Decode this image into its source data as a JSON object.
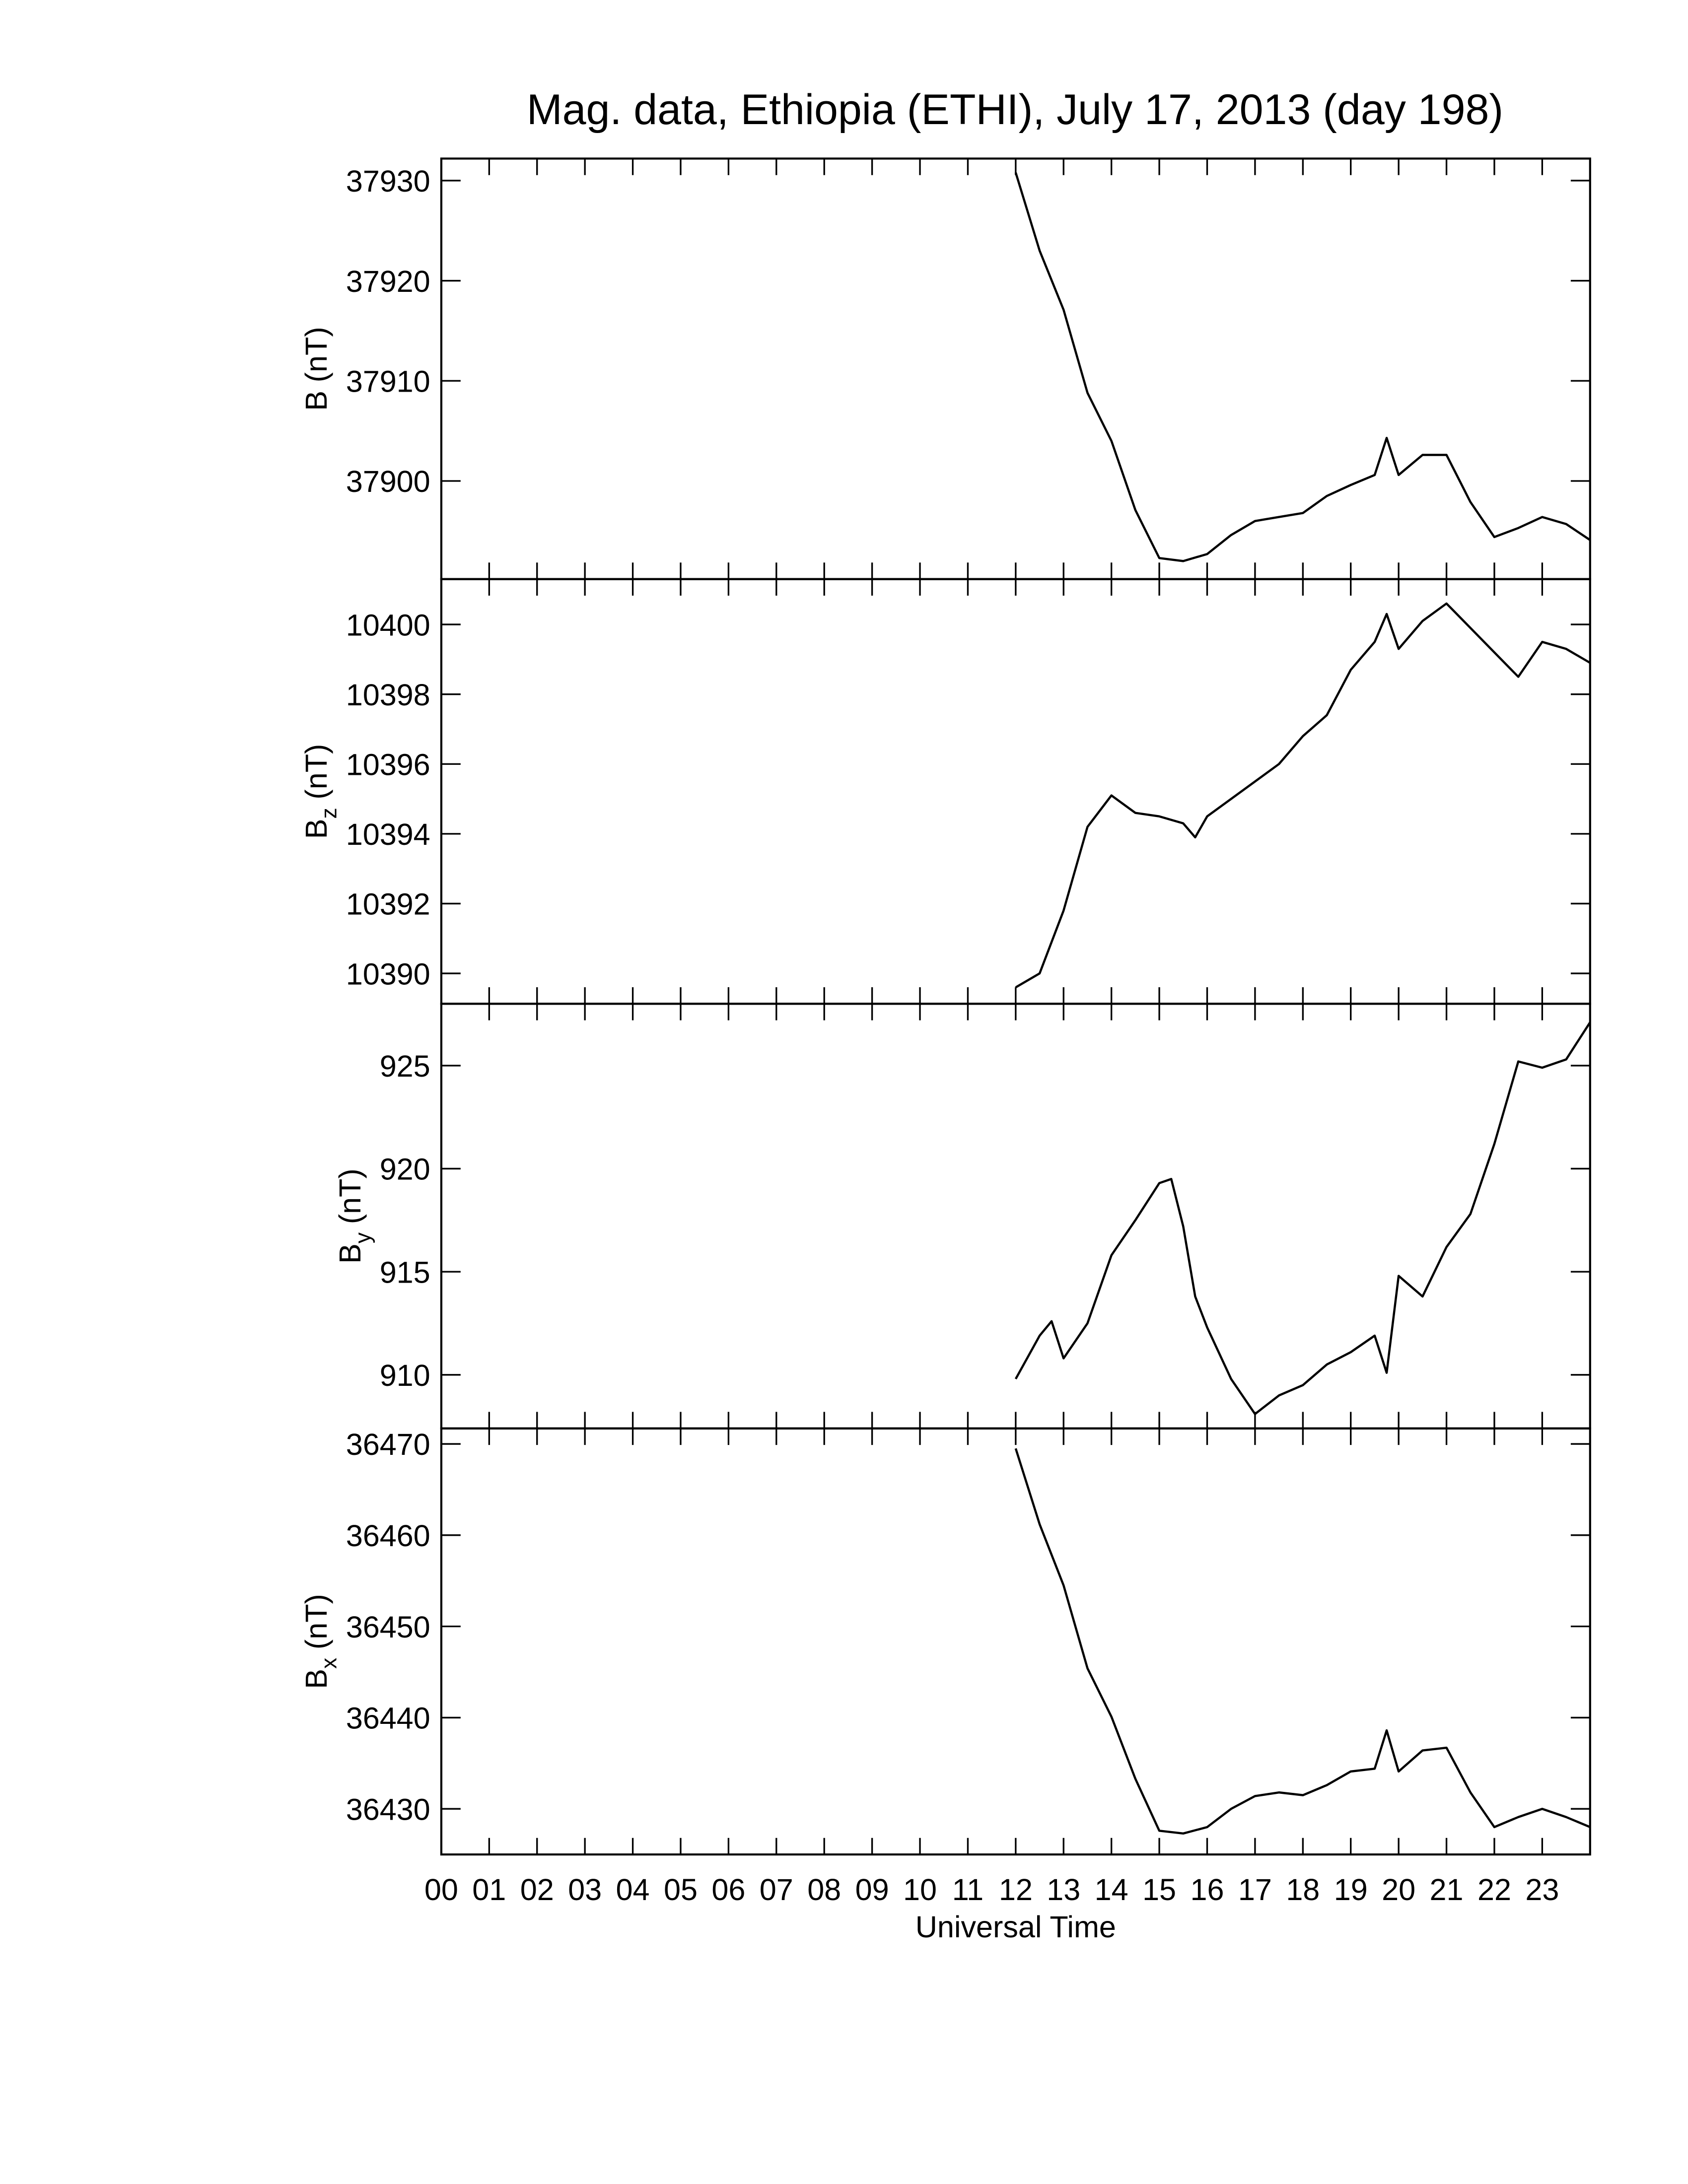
{
  "chart_data": [
    {
      "type": "line",
      "title": "Mag. data, Ethiopia (ETHI), July 17, 2013 (day 198)",
      "ylabel": "B",
      "ylabel_unit": "(nT)",
      "color": "#000000",
      "xlim": [
        0,
        24
      ],
      "ylim": [
        37890.2,
        37932.2
      ],
      "yticks": [
        37900,
        37910,
        37920,
        37930
      ],
      "x": [
        12,
        12.5,
        13,
        13.5,
        14,
        14.5,
        15,
        15.5,
        16,
        16.5,
        17,
        17.5,
        18,
        18.5,
        19,
        19.5,
        19.75,
        20,
        20.5,
        21,
        21.5,
        22,
        22.5,
        23,
        23.5,
        24
      ],
      "values": [
        37930.8,
        37923.0,
        37917.1,
        37908.8,
        37904.0,
        37897.1,
        37892.3,
        37892.0,
        37892.7,
        37894.6,
        37896.0,
        37896.4,
        37896.8,
        37898.5,
        37899.6,
        37900.6,
        37904.3,
        37900.6,
        37902.6,
        37902.6,
        37897.9,
        37894.4,
        37895.3,
        37896.4,
        37895.7,
        37894.1
      ]
    },
    {
      "type": "line",
      "ylabel": "B",
      "ylabel_sub": "z",
      "ylabel_unit": "(nT)",
      "color": "#000000",
      "xlim": [
        0,
        24
      ],
      "ylim": [
        10389.13,
        10401.3
      ],
      "yticks": [
        10390,
        10392,
        10394,
        10396,
        10398,
        10400
      ],
      "x": [
        12,
        12.5,
        13,
        13.5,
        14,
        14.5,
        15,
        15.5,
        15.75,
        16,
        16.5,
        17,
        17.5,
        18,
        18.5,
        19,
        19.5,
        19.75,
        20,
        20.5,
        21,
        21.5,
        22,
        22.5,
        23,
        23.5,
        24
      ],
      "values": [
        10389.6,
        10390.0,
        10391.8,
        10394.2,
        10395.1,
        10394.6,
        10394.5,
        10394.3,
        10393.9,
        10394.5,
        10395.0,
        10395.5,
        10396.0,
        10396.8,
        10397.4,
        10398.7,
        10399.5,
        10400.3,
        10399.3,
        10400.1,
        10400.6,
        10399.9,
        10399.2,
        10398.5,
        10399.5,
        10399.3,
        10398.9
      ]
    },
    {
      "type": "line",
      "ylabel": "B",
      "ylabel_sub": "y",
      "ylabel_unit": "(nT)",
      "color": "#000000",
      "xlim": [
        0,
        24
      ],
      "ylim": [
        907.4,
        928.0
      ],
      "yticks": [
        910,
        915,
        920,
        925
      ],
      "x": [
        12,
        12.5,
        12.75,
        13,
        13.5,
        14,
        14.5,
        15,
        15.25,
        15.5,
        15.75,
        16,
        16.5,
        17,
        17.5,
        18,
        18.5,
        19,
        19.5,
        19.75,
        20,
        20.5,
        21,
        21.5,
        22,
        22.5,
        23,
        23.5,
        24
      ],
      "values": [
        909.8,
        911.9,
        912.6,
        910.8,
        912.5,
        915.8,
        917.5,
        919.3,
        919.5,
        917.2,
        913.8,
        912.3,
        909.8,
        908.1,
        909.0,
        909.5,
        910.5,
        911.1,
        911.9,
        910.1,
        914.8,
        913.8,
        916.2,
        917.8,
        921.2,
        925.2,
        924.9,
        925.3,
        927.1
      ]
    },
    {
      "type": "line",
      "ylabel": "B",
      "ylabel_sub": "x",
      "ylabel_unit": "(nT)",
      "xlabel": "Universal Time",
      "color": "#000000",
      "xlim": [
        0,
        24
      ],
      "ylim": [
        36425.0,
        36471.7
      ],
      "yticks": [
        36430,
        36440,
        36450,
        36460,
        36470
      ],
      "xticks": [
        {
          "value": 0,
          "label": "00"
        },
        {
          "value": 1,
          "label": "01"
        },
        {
          "value": 2,
          "label": "02"
        },
        {
          "value": 3,
          "label": "03"
        },
        {
          "value": 4,
          "label": "04"
        },
        {
          "value": 5,
          "label": "05"
        },
        {
          "value": 6,
          "label": "06"
        },
        {
          "value": 7,
          "label": "07"
        },
        {
          "value": 8,
          "label": "08"
        },
        {
          "value": 9,
          "label": "09"
        },
        {
          "value": 10,
          "label": "10"
        },
        {
          "value": 11,
          "label": "11"
        },
        {
          "value": 12,
          "label": "12"
        },
        {
          "value": 13,
          "label": "13"
        },
        {
          "value": 14,
          "label": "14"
        },
        {
          "value": 15,
          "label": "15"
        },
        {
          "value": 16,
          "label": "16"
        },
        {
          "value": 17,
          "label": "17"
        },
        {
          "value": 18,
          "label": "18"
        },
        {
          "value": 19,
          "label": "19"
        },
        {
          "value": 20,
          "label": "20"
        },
        {
          "value": 21,
          "label": "21"
        },
        {
          "value": 22,
          "label": "22"
        },
        {
          "value": 23,
          "label": "23"
        }
      ],
      "x": [
        12,
        12.5,
        13,
        13.5,
        14,
        14.5,
        15,
        15.5,
        16,
        16.5,
        17,
        17.5,
        18,
        18.5,
        19,
        19.5,
        19.75,
        20,
        20.5,
        21,
        21.5,
        22,
        22.5,
        23,
        23.5,
        24
      ],
      "values": [
        36469.5,
        36461.2,
        36454.5,
        36445.4,
        36440.1,
        36433.3,
        36427.6,
        36427.3,
        36428.0,
        36430.0,
        36431.4,
        36431.8,
        36431.5,
        36432.6,
        36434.1,
        36434.4,
        36438.6,
        36434.1,
        36436.4,
        36436.7,
        36431.8,
        36428.0,
        36429.1,
        36430.0,
        36429.1,
        36428.0
      ]
    }
  ]
}
